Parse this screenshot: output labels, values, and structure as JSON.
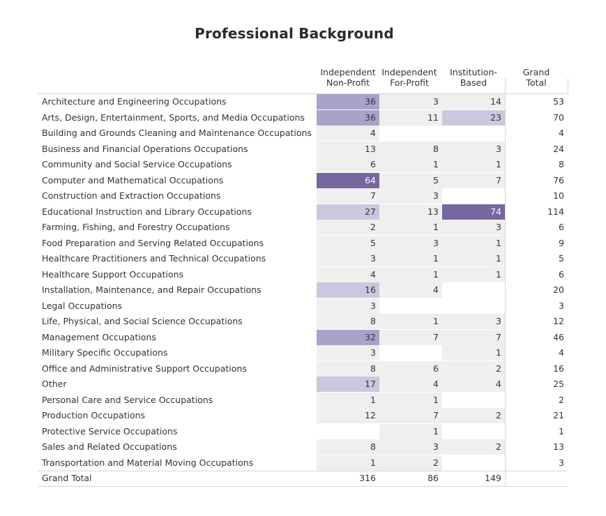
{
  "chart_data": {
    "type": "table",
    "title": "Professional Background",
    "columns": [
      "Independent\nNon-Profit",
      "Independent\nFor-Profit",
      "Institution-\nBased",
      "Grand\nTotal"
    ],
    "rows": [
      {
        "label": "Architecture and Engineering Occupations",
        "values": [
          36,
          3,
          14
        ],
        "total": 53
      },
      {
        "label": "Arts, Design, Entertainment, Sports, and Media Occupations",
        "values": [
          36,
          11,
          23
        ],
        "total": 70
      },
      {
        "label": "Building and Grounds Cleaning and Maintenance Occupations",
        "values": [
          4,
          null,
          null
        ],
        "total": 4
      },
      {
        "label": "Business and Financial Operations Occupations",
        "values": [
          13,
          8,
          3
        ],
        "total": 24
      },
      {
        "label": "Community and Social Service Occupations",
        "values": [
          6,
          1,
          1
        ],
        "total": 8
      },
      {
        "label": "Computer and Mathematical Occupations",
        "values": [
          64,
          5,
          7
        ],
        "total": 76
      },
      {
        "label": "Construction and Extraction Occupations",
        "values": [
          7,
          3,
          null
        ],
        "total": 10
      },
      {
        "label": "Educational Instruction and Library Occupations",
        "values": [
          27,
          13,
          74
        ],
        "total": 114
      },
      {
        "label": "Farming, Fishing, and Forestry Occupations",
        "values": [
          2,
          1,
          3
        ],
        "total": 6
      },
      {
        "label": "Food Preparation and Serving Related Occupations",
        "values": [
          5,
          3,
          1
        ],
        "total": 9
      },
      {
        "label": "Healthcare Practitioners and Technical Occupations",
        "values": [
          3,
          1,
          1
        ],
        "total": 5
      },
      {
        "label": "Healthcare Support Occupations",
        "values": [
          4,
          1,
          1
        ],
        "total": 6
      },
      {
        "label": "Installation, Maintenance, and Repair Occupations",
        "values": [
          16,
          4,
          null
        ],
        "total": 20
      },
      {
        "label": "Legal Occupations",
        "values": [
          3,
          null,
          null
        ],
        "total": 3
      },
      {
        "label": "Life, Physical, and Social Science Occupations",
        "values": [
          8,
          1,
          3
        ],
        "total": 12
      },
      {
        "label": "Management Occupations",
        "values": [
          32,
          7,
          7
        ],
        "total": 46
      },
      {
        "label": "Military Specific Occupations",
        "values": [
          3,
          null,
          1
        ],
        "total": 4
      },
      {
        "label": "Office and Administrative Support Occupations",
        "values": [
          8,
          6,
          2
        ],
        "total": 16
      },
      {
        "label": "Other",
        "values": [
          17,
          4,
          4
        ],
        "total": 25
      },
      {
        "label": "Personal Care and Service Occupations",
        "values": [
          1,
          1,
          null
        ],
        "total": 2
      },
      {
        "label": "Production Occupations",
        "values": [
          12,
          7,
          2
        ],
        "total": 21
      },
      {
        "label": "Protective Service Occupations",
        "values": [
          null,
          1,
          null
        ],
        "total": 1
      },
      {
        "label": "Sales and Related Occupations",
        "values": [
          8,
          3,
          2
        ],
        "total": 13
      },
      {
        "label": "Transportation and Material Moving Occupations",
        "values": [
          1,
          2,
          null
        ],
        "total": 3
      }
    ],
    "grand_total": {
      "label": "Grand Total",
      "values": [
        316,
        86,
        149
      ]
    },
    "colors": {
      "cell_background": "#efefef",
      "highlight_light": "#ccc6de",
      "highlight_medium": "#aaa2c8",
      "highlight_dark": "#76679e",
      "text": "#333333",
      "text_on_dark": "#ffffff"
    }
  }
}
